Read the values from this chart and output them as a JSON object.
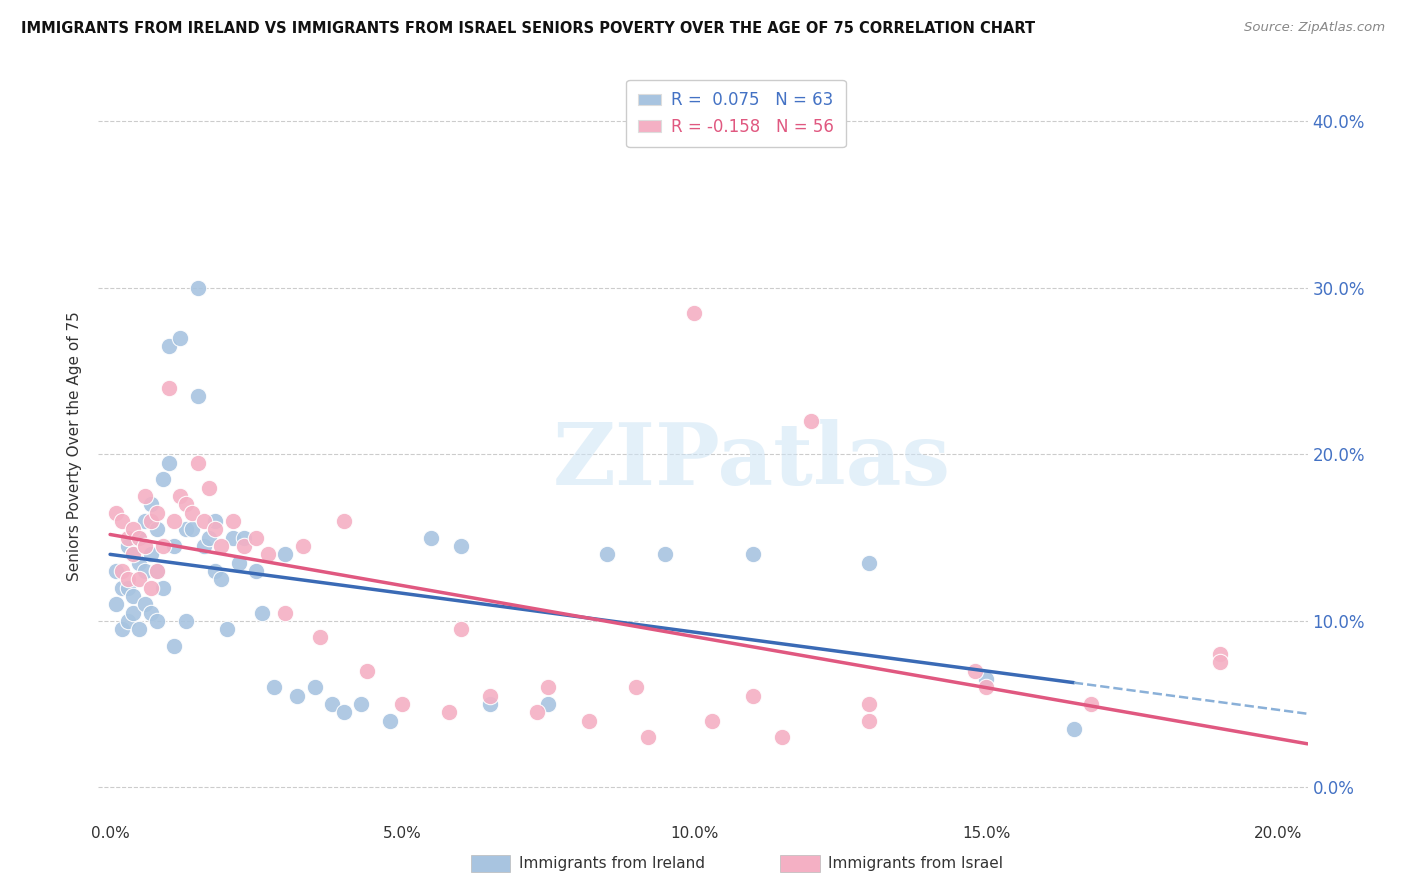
{
  "title": "IMMIGRANTS FROM IRELAND VS IMMIGRANTS FROM ISRAEL SENIORS POVERTY OVER THE AGE OF 75 CORRELATION CHART",
  "source": "Source: ZipAtlas.com",
  "x_tick_labels": [
    "0.0%",
    "5.0%",
    "10.0%",
    "15.0%",
    "20.0%"
  ],
  "x_tick_vals": [
    0.0,
    0.05,
    0.1,
    0.15,
    0.2
  ],
  "y_tick_labels": [
    "0.0%",
    "10.0%",
    "20.0%",
    "30.0%",
    "40.0%"
  ],
  "y_tick_vals": [
    0.0,
    0.1,
    0.2,
    0.3,
    0.4
  ],
  "xlim": [
    -0.002,
    0.205
  ],
  "ylim": [
    -0.02,
    0.43
  ],
  "R_ireland": 0.075,
  "N_ireland": 63,
  "R_israel": -0.158,
  "N_israel": 56,
  "color_ireland": "#a8c4e0",
  "color_israel": "#f4b0c4",
  "line_color_ireland": "#3a6ab5",
  "line_color_ireland_dashed": "#8ab0d8",
  "line_color_israel": "#e05880",
  "ylabel": "Seniors Poverty Over the Age of 75",
  "ireland_x": [
    0.001,
    0.001,
    0.002,
    0.002,
    0.003,
    0.003,
    0.003,
    0.004,
    0.004,
    0.004,
    0.005,
    0.005,
    0.005,
    0.006,
    0.006,
    0.006,
    0.007,
    0.007,
    0.007,
    0.008,
    0.008,
    0.008,
    0.009,
    0.009,
    0.01,
    0.01,
    0.011,
    0.011,
    0.012,
    0.013,
    0.013,
    0.014,
    0.015,
    0.015,
    0.016,
    0.017,
    0.018,
    0.018,
    0.019,
    0.02,
    0.021,
    0.022,
    0.023,
    0.025,
    0.026,
    0.028,
    0.03,
    0.032,
    0.035,
    0.038,
    0.04,
    0.043,
    0.048,
    0.055,
    0.06,
    0.065,
    0.075,
    0.085,
    0.095,
    0.11,
    0.13,
    0.15,
    0.165
  ],
  "ireland_y": [
    0.13,
    0.11,
    0.12,
    0.095,
    0.145,
    0.12,
    0.1,
    0.14,
    0.115,
    0.105,
    0.15,
    0.135,
    0.095,
    0.16,
    0.13,
    0.11,
    0.17,
    0.14,
    0.105,
    0.155,
    0.13,
    0.1,
    0.185,
    0.12,
    0.265,
    0.195,
    0.145,
    0.085,
    0.27,
    0.155,
    0.1,
    0.155,
    0.3,
    0.235,
    0.145,
    0.15,
    0.16,
    0.13,
    0.125,
    0.095,
    0.15,
    0.135,
    0.15,
    0.13,
    0.105,
    0.06,
    0.14,
    0.055,
    0.06,
    0.05,
    0.045,
    0.05,
    0.04,
    0.15,
    0.145,
    0.05,
    0.05,
    0.14,
    0.14,
    0.14,
    0.135,
    0.065,
    0.035
  ],
  "israel_x": [
    0.001,
    0.002,
    0.002,
    0.003,
    0.003,
    0.004,
    0.004,
    0.005,
    0.005,
    0.006,
    0.006,
    0.007,
    0.007,
    0.008,
    0.008,
    0.009,
    0.01,
    0.011,
    0.012,
    0.013,
    0.014,
    0.015,
    0.016,
    0.017,
    0.018,
    0.019,
    0.021,
    0.023,
    0.025,
    0.027,
    0.03,
    0.033,
    0.036,
    0.04,
    0.044,
    0.05,
    0.058,
    0.065,
    0.073,
    0.082,
    0.092,
    0.103,
    0.115,
    0.13,
    0.148,
    0.168,
    0.19,
    0.1,
    0.12,
    0.15,
    0.06,
    0.075,
    0.09,
    0.11,
    0.13,
    0.19
  ],
  "israel_y": [
    0.165,
    0.16,
    0.13,
    0.15,
    0.125,
    0.155,
    0.14,
    0.15,
    0.125,
    0.175,
    0.145,
    0.16,
    0.12,
    0.165,
    0.13,
    0.145,
    0.24,
    0.16,
    0.175,
    0.17,
    0.165,
    0.195,
    0.16,
    0.18,
    0.155,
    0.145,
    0.16,
    0.145,
    0.15,
    0.14,
    0.105,
    0.145,
    0.09,
    0.16,
    0.07,
    0.05,
    0.045,
    0.055,
    0.045,
    0.04,
    0.03,
    0.04,
    0.03,
    0.04,
    0.07,
    0.05,
    0.08,
    0.285,
    0.22,
    0.06,
    0.095,
    0.06,
    0.06,
    0.055,
    0.05,
    0.075
  ]
}
